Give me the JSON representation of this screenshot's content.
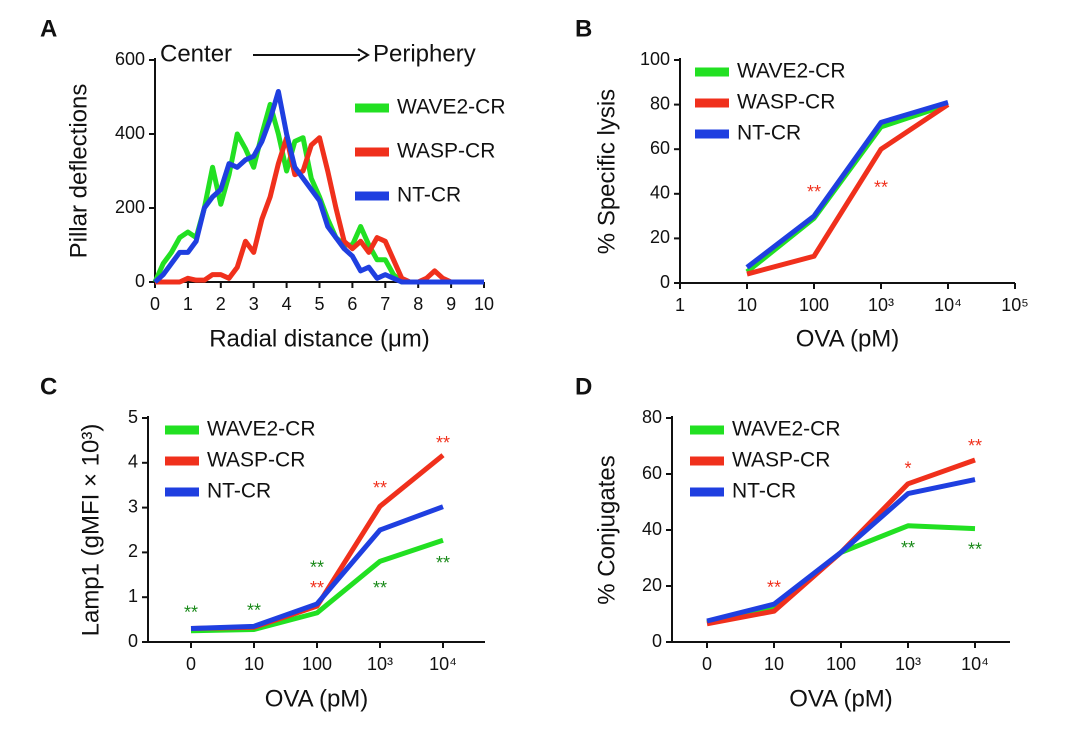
{
  "chart_data": [
    {
      "type": "line",
      "label": "A",
      "subtitle_left": "Center",
      "subtitle_right": "Periphery",
      "x_label": "Radial distance (μm)",
      "y_label": "Pillar deflections",
      "xlim": [
        0,
        10
      ],
      "xticks": [
        0,
        1,
        2,
        3,
        4,
        5,
        6,
        7,
        8,
        9,
        10
      ],
      "ylim": [
        0,
        600
      ],
      "yticks": [
        0,
        200,
        400,
        600
      ],
      "x": [
        0,
        0.25,
        0.5,
        0.75,
        1,
        1.25,
        1.5,
        1.75,
        2,
        2.25,
        2.5,
        2.75,
        3,
        3.25,
        3.5,
        3.75,
        4,
        4.25,
        4.5,
        4.75,
        5,
        5.25,
        5.5,
        5.75,
        6,
        6.25,
        6.5,
        6.75,
        7,
        7.25,
        7.5,
        7.75,
        8,
        8.25,
        8.5,
        8.75,
        9,
        9.25,
        9.5,
        9.75,
        10
      ],
      "series": [
        {
          "name": "WAVE2-CR",
          "color": "#22e022",
          "values": [
            0,
            50,
            80,
            120,
            135,
            120,
            200,
            310,
            210,
            290,
            400,
            360,
            310,
            400,
            480,
            400,
            300,
            380,
            390,
            280,
            230,
            170,
            120,
            100,
            100,
            150,
            100,
            60,
            60,
            20,
            0,
            0,
            0,
            0,
            0,
            0,
            0,
            0,
            0,
            0,
            0
          ]
        },
        {
          "name": "WASP-CR",
          "color": "#f0301c",
          "values": [
            0,
            0,
            0,
            0,
            10,
            5,
            5,
            20,
            20,
            10,
            40,
            110,
            80,
            170,
            230,
            320,
            390,
            290,
            300,
            370,
            390,
            300,
            200,
            110,
            90,
            110,
            80,
            120,
            110,
            60,
            10,
            0,
            0,
            10,
            30,
            10,
            0,
            0,
            0,
            0,
            0
          ]
        },
        {
          "name": "NT-CR",
          "color": "#1f3fe0",
          "values": [
            0,
            20,
            50,
            80,
            80,
            110,
            200,
            230,
            250,
            320,
            310,
            330,
            340,
            380,
            440,
            515,
            400,
            310,
            280,
            250,
            220,
            150,
            120,
            90,
            70,
            30,
            40,
            10,
            20,
            10,
            0,
            0,
            0,
            0,
            0,
            0,
            0,
            0,
            0,
            0,
            0
          ]
        }
      ]
    },
    {
      "type": "line",
      "label": "B",
      "x_label": "OVA (pM)",
      "y_label": "% Specific lysis",
      "xscale": "log",
      "xlim": [
        1,
        100000
      ],
      "xticks": [
        1,
        10,
        100,
        {
          "value": 1000,
          "label": "10³"
        },
        {
          "value": 10000,
          "label": "10⁴"
        },
        {
          "value": 100000,
          "label": "10⁵"
        }
      ],
      "ylim": [
        0,
        100
      ],
      "yticks": [
        0,
        20,
        40,
        60,
        80,
        100
      ],
      "x": [
        10,
        100,
        1000,
        10000
      ],
      "series": [
        {
          "name": "WAVE2-CR",
          "color": "#22e022",
          "values": [
            5,
            29,
            70,
            80
          ]
        },
        {
          "name": "WASP-CR",
          "color": "#f0301c",
          "values": [
            4,
            12,
            60,
            80
          ]
        },
        {
          "name": "NT-CR",
          "color": "#1f3fe0",
          "values": [
            7,
            30,
            72,
            81
          ]
        }
      ],
      "annotations": [
        {
          "text": "**",
          "x": 100,
          "y": 42,
          "color": "#f0301c"
        },
        {
          "text": "**",
          "x": 1000,
          "y": 44,
          "color": "#f0301c"
        }
      ]
    },
    {
      "type": "line",
      "label": "C",
      "x_label": "OVA (pM)",
      "y_label": "Lamp1 (gMFI × 10³)",
      "categories": [
        "0",
        "10",
        "100",
        "10³",
        "10⁴"
      ],
      "ylim": [
        0,
        5
      ],
      "yticks": [
        0,
        1,
        2,
        3,
        4,
        5
      ],
      "series": [
        {
          "name": "WAVE2-CR",
          "color": "#22e022",
          "values": [
            0.25,
            0.28,
            0.65,
            1.8,
            2.27
          ]
        },
        {
          "name": "WASP-CR",
          "color": "#f0301c",
          "values": [
            0.3,
            0.33,
            0.8,
            3.03,
            4.17
          ]
        },
        {
          "name": "NT-CR",
          "color": "#1f3fe0",
          "values": [
            0.3,
            0.35,
            0.85,
            2.5,
            3.02
          ]
        }
      ],
      "annotations": [
        {
          "text": "**",
          "x": "0",
          "y": 0.72,
          "color": "#1a8a1a"
        },
        {
          "text": "**",
          "x": "10",
          "y": 0.76,
          "color": "#1a8a1a"
        },
        {
          "text": "**",
          "x": "100",
          "y": 1.72,
          "color": "#1a8a1a"
        },
        {
          "text": "**",
          "x": "100",
          "y": 1.27,
          "color": "#f0301c"
        },
        {
          "text": "**",
          "x": "10³",
          "y": 3.5,
          "color": "#f0301c"
        },
        {
          "text": "**",
          "x": "10³",
          "y": 1.27,
          "color": "#1a8a1a"
        },
        {
          "text": "**",
          "x": "10⁴",
          "y": 4.5,
          "color": "#f0301c"
        },
        {
          "text": "**",
          "x": "10⁴",
          "y": 1.83,
          "color": "#1a8a1a"
        }
      ]
    },
    {
      "type": "line",
      "label": "D",
      "x_label": "OVA (pM)",
      "y_label": "% Conjugates",
      "categories": [
        "0",
        "10",
        "100",
        "10³",
        "10⁴"
      ],
      "ylim": [
        0,
        80
      ],
      "yticks": [
        0,
        20,
        40,
        60,
        80
      ],
      "series": [
        {
          "name": "WAVE2-CR",
          "color": "#22e022",
          "values": [
            7,
            12,
            32,
            41.5,
            40.5
          ]
        },
        {
          "name": "WASP-CR",
          "color": "#f0301c",
          "values": [
            6.5,
            11,
            32,
            56.5,
            65
          ]
        },
        {
          "name": "NT-CR",
          "color": "#1f3fe0",
          "values": [
            7.5,
            13.5,
            32,
            53,
            58
          ]
        }
      ],
      "annotations": [
        {
          "text": "**",
          "x": "10",
          "y": 20.4,
          "color": "#f0301c"
        },
        {
          "text": "*",
          "x": "10³",
          "y": 63,
          "color": "#f0301c"
        },
        {
          "text": "**",
          "x": "10⁴",
          "y": 71,
          "color": "#f0301c"
        },
        {
          "text": "**",
          "x": "10³",
          "y": 34.6,
          "color": "#1a8a1a"
        },
        {
          "text": "**",
          "x": "10⁴",
          "y": 34,
          "color": "#1a8a1a"
        }
      ]
    }
  ]
}
